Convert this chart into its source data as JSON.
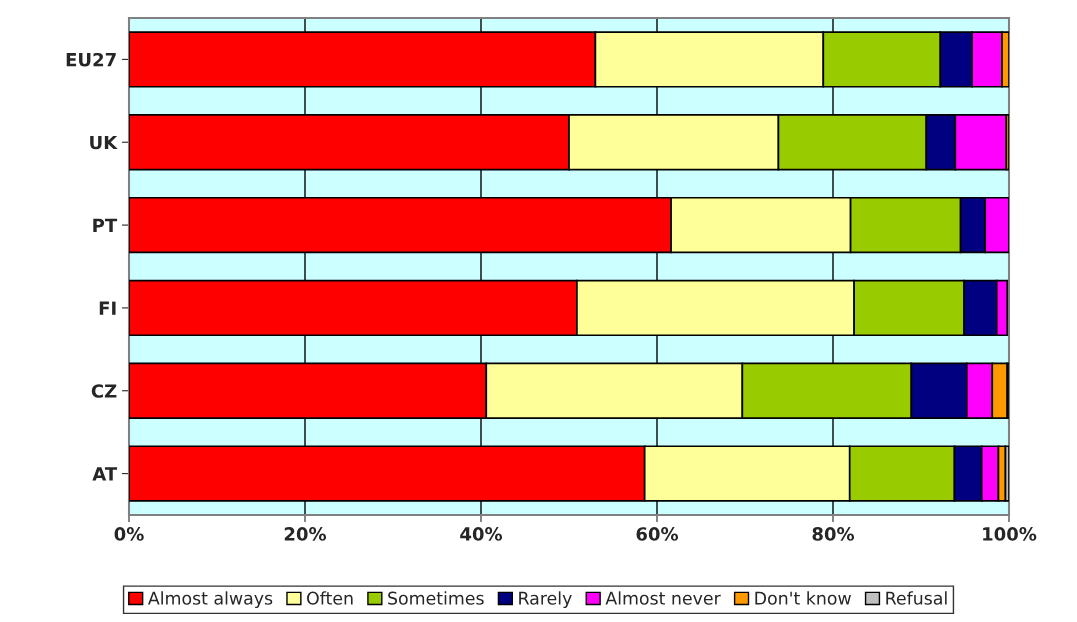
{
  "chart_data": {
    "type": "bar",
    "orientation": "horizontal",
    "stacked": true,
    "categories": [
      "EU27",
      "UK",
      "PT",
      "FI",
      "CZ",
      "AT"
    ],
    "series": [
      {
        "name": "Almost always",
        "color": "#ff0000",
        "values": [
          53.0,
          50.0,
          61.6,
          50.9,
          40.6,
          58.6
        ]
      },
      {
        "name": "Often",
        "color": "#ffff99",
        "values": [
          25.9,
          23.8,
          20.4,
          31.5,
          29.1,
          23.3
        ]
      },
      {
        "name": "Sometimes",
        "color": "#99cc00",
        "values": [
          13.3,
          16.8,
          12.5,
          12.5,
          19.2,
          11.9
        ]
      },
      {
        "name": "Rarely",
        "color": "#000080",
        "values": [
          3.6,
          3.3,
          2.8,
          3.7,
          6.3,
          3.1
        ]
      },
      {
        "name": "Almost never",
        "color": "#ff00ff",
        "values": [
          3.4,
          5.8,
          2.7,
          1.2,
          2.9,
          1.9
        ]
      },
      {
        "name": "Don't know",
        "color": "#ff9900",
        "values": [
          0.8,
          0.3,
          null,
          null,
          1.7,
          0.8
        ]
      },
      {
        "name": "Refusal",
        "color": "#c0c0c0",
        "values": [
          null,
          null,
          null,
          null,
          0.2,
          0.4
        ]
      }
    ],
    "xlim": [
      0,
      100
    ],
    "xticks": [
      {
        "value": 0,
        "label": "0%"
      },
      {
        "value": 20,
        "label": "20%"
      },
      {
        "value": 40,
        "label": "40%"
      },
      {
        "value": 60,
        "label": "60%"
      },
      {
        "value": 80,
        "label": "80%"
      },
      {
        "value": 100,
        "label": "100%"
      }
    ],
    "bands": [
      {
        "axis": "x",
        "from": 0,
        "to": 100,
        "color": "#ccffff"
      }
    ],
    "grid": "x",
    "legend": "bottom"
  }
}
